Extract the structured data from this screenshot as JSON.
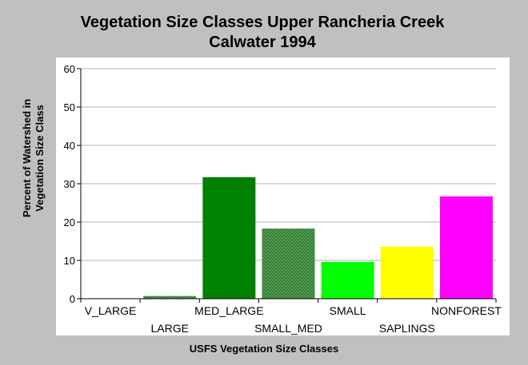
{
  "chart_data": {
    "type": "bar",
    "title": "Vegetation Size Classes Upper Rancheria Creek",
    "subtitle": "Calwater 1994",
    "xlabel": "USFS Vegetation Size Classes",
    "ylabel_line1": "Percent of Watershed in",
    "ylabel_line2": "Vegetation Size Class",
    "ylim": [
      0,
      60
    ],
    "yticks": [
      "0",
      "10",
      "20",
      "30",
      "40",
      "50",
      "60"
    ],
    "categories": [
      "V_LARGE",
      "LARGE",
      "MED_LARGE",
      "SMALL_MED",
      "SMALL",
      "SAPLINGS",
      "NONFOREST"
    ],
    "values": [
      0,
      0.7,
      31.7,
      18.3,
      9.6,
      13.6,
      26.7
    ],
    "colors": [
      "#006400",
      "#006400",
      "#008000",
      "#2f7a2f",
      "#00ff00",
      "#ffff00",
      "#ff00ff"
    ],
    "patterns": [
      "solid",
      "hatched",
      "solid",
      "hatched",
      "solid",
      "solid",
      "solid"
    ],
    "label_rows": [
      0,
      1,
      0,
      1,
      0,
      1,
      0
    ],
    "grid": true,
    "legend": "none"
  }
}
